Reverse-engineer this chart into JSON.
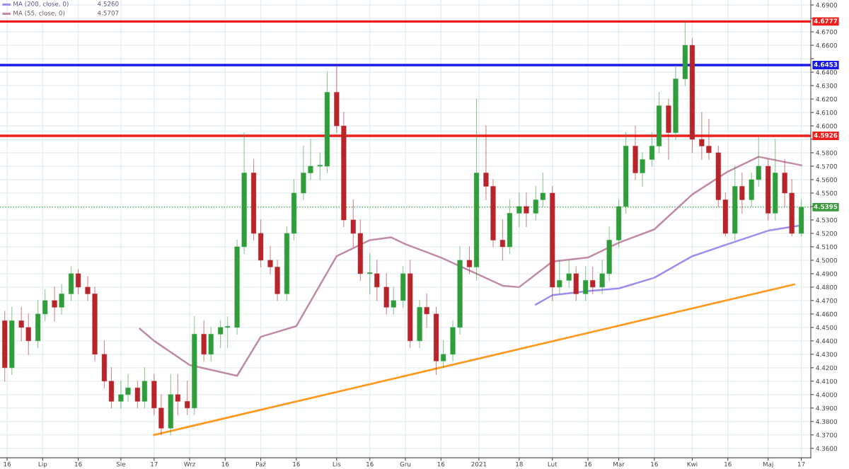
{
  "chart_data": {
    "type": "candlestick",
    "x": [
      "2020-06-15",
      "2020-06-18",
      "2020-06-22",
      "2020-06-25",
      "2020-06-29",
      "2020-07-02",
      "2020-07-06",
      "2020-07-09",
      "2020-07-13",
      "2020-07-16",
      "2020-07-20",
      "2020-07-23",
      "2020-07-27",
      "2020-07-30",
      "2020-08-03",
      "2020-08-06",
      "2020-08-10",
      "2020-08-13",
      "2020-08-17",
      "2020-08-20",
      "2020-08-24",
      "2020-08-27",
      "2020-08-31",
      "2020-09-03",
      "2020-09-07",
      "2020-09-10",
      "2020-09-14",
      "2020-09-17",
      "2020-09-21",
      "2020-09-24",
      "2020-09-28",
      "2020-10-01",
      "2020-10-05",
      "2020-10-08",
      "2020-10-12",
      "2020-10-15",
      "2020-10-19",
      "2020-10-22",
      "2020-10-26",
      "2020-10-29",
      "2020-11-02",
      "2020-11-05",
      "2020-11-09",
      "2020-11-12",
      "2020-11-16",
      "2020-11-19",
      "2020-11-23",
      "2020-11-26",
      "2020-11-30",
      "2020-12-03",
      "2020-12-07",
      "2020-12-10",
      "2020-12-14",
      "2020-12-17",
      "2020-12-21",
      "2020-12-24",
      "2020-12-28",
      "2020-12-31",
      "2021-01-04",
      "2021-01-07",
      "2021-01-11",
      "2021-01-14",
      "2021-01-18",
      "2021-01-21",
      "2021-01-25",
      "2021-01-28",
      "2021-02-01",
      "2021-02-04",
      "2021-02-08",
      "2021-02-11",
      "2021-02-15",
      "2021-02-18",
      "2021-02-22",
      "2021-02-25",
      "2021-03-01",
      "2021-03-04",
      "2021-03-08",
      "2021-03-11",
      "2021-03-15",
      "2021-03-18",
      "2021-03-22",
      "2021-03-25",
      "2021-03-29",
      "2021-04-01",
      "2021-04-05",
      "2021-04-08",
      "2021-04-12",
      "2021-04-15",
      "2021-04-19",
      "2021-04-22",
      "2021-04-26",
      "2021-04-29",
      "2021-05-03",
      "2021-05-06",
      "2021-05-10",
      "2021-05-13",
      "2021-05-17"
    ],
    "ohlc": [
      [
        4.455,
        4.462,
        4.41,
        4.42
      ],
      [
        4.42,
        4.465,
        4.415,
        4.455
      ],
      [
        4.455,
        4.465,
        4.44,
        4.45
      ],
      [
        4.45,
        4.46,
        4.43,
        4.44
      ],
      [
        4.44,
        4.47,
        4.435,
        4.46
      ],
      [
        4.46,
        4.478,
        4.455,
        4.47
      ],
      [
        4.47,
        4.48,
        4.455,
        4.465
      ],
      [
        4.465,
        4.482,
        4.46,
        4.475
      ],
      [
        4.475,
        4.495,
        4.47,
        4.49
      ],
      [
        4.49,
        4.493,
        4.475,
        4.48
      ],
      [
        4.48,
        4.488,
        4.47,
        4.475
      ],
      [
        4.475,
        4.48,
        4.425,
        4.43
      ],
      [
        4.43,
        4.44,
        4.405,
        4.41
      ],
      [
        4.41,
        4.42,
        4.39,
        4.395
      ],
      [
        4.395,
        4.41,
        4.39,
        4.4
      ],
      [
        4.4,
        4.415,
        4.395,
        4.405
      ],
      [
        4.405,
        4.41,
        4.39,
        4.395
      ],
      [
        4.395,
        4.42,
        4.39,
        4.41
      ],
      [
        4.41,
        4.415,
        4.385,
        4.39
      ],
      [
        4.39,
        4.4,
        4.37,
        4.375
      ],
      [
        4.375,
        4.415,
        4.37,
        4.4
      ],
      [
        4.4,
        4.415,
        4.385,
        4.395
      ],
      [
        4.395,
        4.41,
        4.385,
        4.39
      ],
      [
        4.39,
        4.458,
        4.385,
        4.445
      ],
      [
        4.445,
        4.455,
        4.425,
        4.43
      ],
      [
        4.43,
        4.45,
        4.425,
        4.445
      ],
      [
        4.445,
        4.455,
        4.435,
        4.45
      ],
      [
        4.45,
        4.458,
        4.435,
        4.45
      ],
      [
        4.45,
        4.515,
        4.445,
        4.51
      ],
      [
        4.51,
        4.595,
        4.505,
        4.565
      ],
      [
        4.565,
        4.575,
        4.515,
        4.52
      ],
      [
        4.52,
        4.53,
        4.495,
        4.5
      ],
      [
        4.5,
        4.51,
        4.49,
        4.495
      ],
      [
        4.495,
        4.5,
        4.47,
        4.475
      ],
      [
        4.475,
        4.525,
        4.47,
        4.52
      ],
      [
        4.52,
        4.56,
        4.515,
        4.55
      ],
      [
        4.55,
        4.585,
        4.545,
        4.565
      ],
      [
        4.565,
        4.59,
        4.56,
        4.57
      ],
      [
        4.57,
        4.58,
        4.56,
        4.57
      ],
      [
        4.57,
        4.64,
        4.565,
        4.625
      ],
      [
        4.625,
        4.6453,
        4.595,
        4.6
      ],
      [
        4.6,
        4.61,
        4.525,
        4.53
      ],
      [
        4.53,
        4.545,
        4.51,
        4.52
      ],
      [
        4.52,
        4.53,
        4.485,
        4.49
      ],
      [
        4.49,
        4.505,
        4.475,
        4.49
      ],
      [
        4.49,
        4.5,
        4.47,
        4.48
      ],
      [
        4.48,
        4.49,
        4.46,
        4.465
      ],
      [
        4.465,
        4.48,
        4.46,
        4.47
      ],
      [
        4.47,
        4.495,
        4.465,
        4.49
      ],
      [
        4.49,
        4.5,
        4.435,
        4.44
      ],
      [
        4.44,
        4.47,
        4.435,
        4.465
      ],
      [
        4.465,
        4.475,
        4.45,
        4.46
      ],
      [
        4.46,
        4.465,
        4.415,
        4.425
      ],
      [
        4.425,
        4.44,
        4.42,
        4.43
      ],
      [
        4.43,
        4.455,
        4.425,
        4.45
      ],
      [
        4.45,
        4.51,
        4.445,
        4.5
      ],
      [
        4.5,
        4.51,
        4.49,
        4.495
      ],
      [
        4.495,
        4.62,
        4.485,
        4.565
      ],
      [
        4.565,
        4.6,
        4.545,
        4.555
      ],
      [
        4.555,
        4.56,
        4.51,
        4.515
      ],
      [
        4.515,
        4.53,
        4.5,
        4.51
      ],
      [
        4.51,
        4.545,
        4.505,
        4.535
      ],
      [
        4.535,
        4.55,
        4.525,
        4.54
      ],
      [
        4.54,
        4.55,
        4.525,
        4.535
      ],
      [
        4.535,
        4.555,
        4.53,
        4.545
      ],
      [
        4.545,
        4.565,
        4.54,
        4.55
      ],
      [
        4.55,
        4.555,
        4.47,
        4.48
      ],
      [
        4.48,
        4.5,
        4.475,
        4.485
      ],
      [
        4.485,
        4.5,
        4.48,
        4.49
      ],
      [
        4.49,
        4.495,
        4.47,
        4.475
      ],
      [
        4.475,
        4.495,
        4.47,
        4.485
      ],
      [
        4.485,
        4.495,
        4.475,
        4.48
      ],
      [
        4.48,
        4.5,
        4.475,
        4.49
      ],
      [
        4.49,
        4.525,
        4.485,
        4.515
      ],
      [
        4.515,
        4.545,
        4.51,
        4.54
      ],
      [
        4.54,
        4.595,
        4.535,
        4.585
      ],
      [
        4.585,
        4.6,
        4.56,
        4.565
      ],
      [
        4.565,
        4.58,
        4.555,
        4.575
      ],
      [
        4.575,
        4.595,
        4.57,
        4.585
      ],
      [
        4.585,
        4.625,
        4.58,
        4.615
      ],
      [
        4.615,
        4.62,
        4.575,
        4.595
      ],
      [
        4.595,
        4.645,
        4.59,
        4.635
      ],
      [
        4.635,
        4.6777,
        4.63,
        4.66
      ],
      [
        4.66,
        4.665,
        4.58,
        4.59
      ],
      [
        4.59,
        4.61,
        4.575,
        4.585
      ],
      [
        4.585,
        4.605,
        4.575,
        4.58
      ],
      [
        4.58,
        4.585,
        4.54,
        4.545
      ],
      [
        4.545,
        4.55,
        4.518,
        4.52
      ],
      [
        4.52,
        4.57,
        4.515,
        4.555
      ],
      [
        4.555,
        4.565,
        4.535,
        4.545
      ],
      [
        4.545,
        4.565,
        4.54,
        4.56
      ],
      [
        4.56,
        4.5926,
        4.555,
        4.57
      ],
      [
        4.57,
        4.575,
        4.53,
        4.535
      ],
      [
        4.535,
        4.59,
        4.53,
        4.565
      ],
      [
        4.565,
        4.575,
        4.54,
        4.55
      ],
      [
        4.55,
        4.56,
        4.518,
        4.52
      ],
      [
        4.52,
        4.545,
        4.518,
        4.5395
      ]
    ],
    "colors": [
      "#b7252a",
      "#2f9e3a",
      "#b7252a",
      "#b7252a",
      "#2f9e3a",
      "#2f9e3a",
      "#b7252a",
      "#2f9e3a",
      "#2f9e3a",
      "#b7252a",
      "#b7252a",
      "#b7252a",
      "#b7252a",
      "#b7252a",
      "#2f9e3a",
      "#2f9e3a",
      "#b7252a",
      "#2f9e3a",
      "#b7252a",
      "#b7252a",
      "#2f9e3a",
      "#b7252a",
      "#b7252a",
      "#2f9e3a",
      "#b7252a",
      "#2f9e3a",
      "#2f9e3a",
      "#2f9e3a",
      "#2f9e3a",
      "#2f9e3a",
      "#b7252a",
      "#b7252a",
      "#b7252a",
      "#b7252a",
      "#2f9e3a",
      "#2f9e3a",
      "#2f9e3a",
      "#2f9e3a",
      "#2f9e3a",
      "#2f9e3a",
      "#b7252a",
      "#b7252a",
      "#b7252a",
      "#b7252a",
      "#2f9e3a",
      "#b7252a",
      "#b7252a",
      "#2f9e3a",
      "#2f9e3a",
      "#b7252a",
      "#2f9e3a",
      "#b7252a",
      "#b7252a",
      "#2f9e3a",
      "#2f9e3a",
      "#2f9e3a",
      "#b7252a",
      "#2f9e3a",
      "#b7252a",
      "#b7252a",
      "#b7252a",
      "#2f9e3a",
      "#2f9e3a",
      "#b7252a",
      "#2f9e3a",
      "#2f9e3a",
      "#b7252a",
      "#2f9e3a",
      "#2f9e3a",
      "#b7252a",
      "#2f9e3a",
      "#b7252a",
      "#2f9e3a",
      "#2f9e3a",
      "#2f9e3a",
      "#2f9e3a",
      "#b7252a",
      "#2f9e3a",
      "#2f9e3a",
      "#2f9e3a",
      "#b7252a",
      "#2f9e3a",
      "#2f9e3a",
      "#b7252a",
      "#b7252a",
      "#b7252a",
      "#b7252a",
      "#b7252a",
      "#2f9e3a",
      "#b7252a",
      "#2f9e3a",
      "#2f9e3a",
      "#b7252a",
      "#2f9e3a",
      "#b7252a",
      "#b7252a",
      "#2f9e3a"
    ],
    "series": [
      {
        "name": "MA (200, close, 0)",
        "type": "line",
        "color": "#9d8cf2",
        "x": [
          "2021-01-25",
          "2021-02-01",
          "2021-02-16",
          "2021-03-01",
          "2021-03-16",
          "2021-04-01",
          "2021-04-16",
          "2021-05-03",
          "2021-05-17"
        ],
        "values": [
          4.467,
          4.474,
          4.477,
          4.479,
          4.487,
          4.503,
          4.512,
          4.522,
          4.526
        ]
      },
      {
        "name": "MA (55, close, 0)",
        "type": "line",
        "color": "#c08aa6",
        "x": [
          "2020-08-11",
          "2020-08-17",
          "2020-09-01",
          "2020-09-21",
          "2020-10-01",
          "2020-10-16",
          "2020-11-02",
          "2020-11-16",
          "2020-11-25",
          "2020-12-01",
          "2020-12-16",
          "2020-12-31",
          "2021-01-11",
          "2021-01-18",
          "2021-02-01",
          "2021-02-16",
          "2021-03-01",
          "2021-03-16",
          "2021-04-01",
          "2021-04-16",
          "2021-04-29",
          "2021-05-17"
        ],
        "values": [
          4.449,
          4.44,
          4.422,
          4.414,
          4.443,
          4.451,
          4.503,
          4.515,
          4.517,
          4.512,
          4.502,
          4.49,
          4.481,
          4.48,
          4.499,
          4.502,
          4.513,
          4.523,
          4.549,
          4.566,
          4.577,
          4.5707
        ]
      },
      {
        "type": "line",
        "color": "#ff9a1f",
        "x": [
          "2020-08-17",
          "2021-05-14"
        ],
        "values": [
          4.37,
          4.482
        ]
      }
    ],
    "annotations": [
      "4.5260",
      "4.5707"
    ],
    "legend": "top left",
    "ref_lines": [
      {
        "axis": "y",
        "value": 4.6777,
        "label": "4.6777",
        "color": "#f01d1d"
      },
      {
        "axis": "y",
        "value": 4.6453,
        "label": "4.6453",
        "color": "#1a1ae6"
      },
      {
        "axis": "y",
        "value": 4.5926,
        "label": "4.5926",
        "color": "#f01d1d"
      },
      {
        "axis": "y",
        "value": 4.5395,
        "label": "4.5395",
        "color": "#3a9b3a",
        "line_style": "dotted"
      }
    ],
    "xlim": [
      "2020-06-13",
      "2021-05-21"
    ],
    "xticks": [
      {
        "value": "2020-06-16",
        "label": "16"
      },
      {
        "value": "2020-07-01",
        "label": "Lip"
      },
      {
        "value": "2020-07-16",
        "label": "16"
      },
      {
        "value": "2020-08-03",
        "label": "Sie"
      },
      {
        "value": "2020-08-17",
        "label": "17"
      },
      {
        "value": "2020-09-01",
        "label": "Wrz"
      },
      {
        "value": "2020-09-16",
        "label": "16"
      },
      {
        "value": "2020-10-01",
        "label": "Paź"
      },
      {
        "value": "2020-10-16",
        "label": "16"
      },
      {
        "value": "2020-11-02",
        "label": "Lis"
      },
      {
        "value": "2020-11-16",
        "label": "16"
      },
      {
        "value": "2020-12-01",
        "label": "Gru"
      },
      {
        "value": "2020-12-16",
        "label": "16"
      },
      {
        "value": "2021-01-01",
        "label": "2021"
      },
      {
        "value": "2021-01-18",
        "label": "18"
      },
      {
        "value": "2021-02-01",
        "label": "Lut"
      },
      {
        "value": "2021-02-16",
        "label": "16"
      },
      {
        "value": "2021-03-01",
        "label": "Mar"
      },
      {
        "value": "2021-03-16",
        "label": "16"
      },
      {
        "value": "2021-04-01",
        "label": "Kwi"
      },
      {
        "value": "2021-04-16",
        "label": "16"
      },
      {
        "value": "2021-05-03",
        "label": "Maj"
      },
      {
        "value": "2021-05-17",
        "label": "17"
      }
    ],
    "ylim": [
      4.353,
      4.6937
    ],
    "yticks": [
      {
        "value": 4.36,
        "label": "4.3600"
      },
      {
        "value": 4.37,
        "label": "4.3700"
      },
      {
        "value": 4.38,
        "label": "4.3800"
      },
      {
        "value": 4.39,
        "label": "4.3900"
      },
      {
        "value": 4.4,
        "label": "4.4000"
      },
      {
        "value": 4.41,
        "label": "4.4100"
      },
      {
        "value": 4.42,
        "label": "4.4200"
      },
      {
        "value": 4.43,
        "label": "4.4300"
      },
      {
        "value": 4.44,
        "label": "4.4400"
      },
      {
        "value": 4.45,
        "label": "4.4500"
      },
      {
        "value": 4.46,
        "label": "4.4600"
      },
      {
        "value": 4.47,
        "label": "4.4700"
      },
      {
        "value": 4.48,
        "label": "4.4800"
      },
      {
        "value": 4.49,
        "label": "4.4900"
      },
      {
        "value": 4.5,
        "label": "4.5000"
      },
      {
        "value": 4.51,
        "label": "4.5100"
      },
      {
        "value": 4.52,
        "label": "4.5200"
      },
      {
        "value": 4.53,
        "label": "4.5300"
      },
      {
        "value": 4.54,
        "label": null
      },
      {
        "value": 4.55,
        "label": "4.5500"
      },
      {
        "value": 4.56,
        "label": "4.5600"
      },
      {
        "value": 4.57,
        "label": "4.5700"
      },
      {
        "value": 4.58,
        "label": "4.5800"
      },
      {
        "value": 4.59,
        "label": null
      },
      {
        "value": 4.6,
        "label": "4.6000"
      },
      {
        "value": 4.61,
        "label": "4.6100"
      },
      {
        "value": 4.62,
        "label": "4.6200"
      },
      {
        "value": 4.63,
        "label": "4.6300"
      },
      {
        "value": 4.64,
        "label": "4.6400"
      },
      {
        "value": 4.65,
        "label": null
      },
      {
        "value": 4.66,
        "label": "4.6600"
      },
      {
        "value": 4.67,
        "label": "4.6700"
      },
      {
        "value": 4.68,
        "label": null
      },
      {
        "value": 4.69,
        "label": "4.6900"
      }
    ],
    "grid": true
  }
}
